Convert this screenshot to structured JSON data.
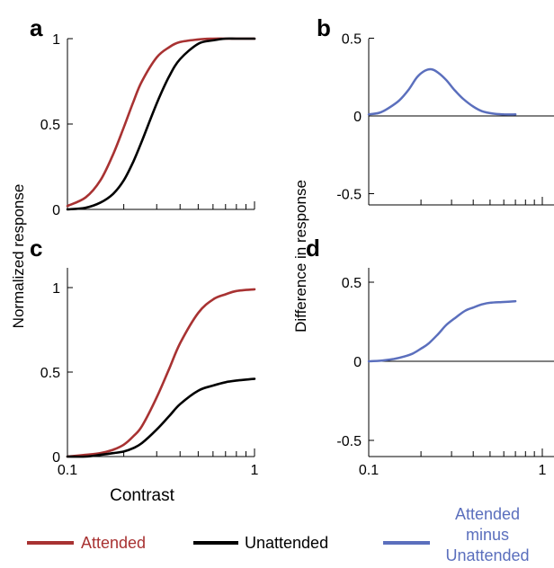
{
  "colors": {
    "attended": "#a83232",
    "unattended": "#000000",
    "difference": "#5b6fbd"
  },
  "labels": {
    "ylabel_left": "Normalized response",
    "ylabel_right": "Difference in response",
    "xlabel": "Contrast"
  },
  "legend": {
    "attended": "Attended",
    "unattended": "Unattended",
    "difference": [
      "Attended",
      "minus",
      "Unattended"
    ]
  },
  "chart_data": [
    {
      "panel": "a",
      "type": "line",
      "xscale": "log",
      "xlim": [
        0.1,
        1
      ],
      "ylim": [
        0,
        1
      ],
      "yticks": [
        "0",
        "0.5",
        "1"
      ],
      "x": [
        0.1,
        0.125,
        0.15,
        0.175,
        0.2,
        0.225,
        0.25,
        0.3,
        0.35,
        0.4,
        0.5,
        0.6,
        0.7,
        0.8,
        1.0
      ],
      "series": [
        {
          "name": "Attended",
          "values": [
            0.02,
            0.07,
            0.17,
            0.32,
            0.48,
            0.63,
            0.75,
            0.89,
            0.95,
            0.98,
            0.995,
            1.0,
            1.0,
            1.0,
            1.0
          ]
        },
        {
          "name": "Unattended",
          "values": [
            0.0,
            0.01,
            0.04,
            0.09,
            0.17,
            0.28,
            0.4,
            0.62,
            0.78,
            0.88,
            0.97,
            0.99,
            1.0,
            1.0,
            1.0
          ]
        }
      ]
    },
    {
      "panel": "b",
      "type": "line",
      "xscale": "log",
      "xlim": [
        0.1,
        1
      ],
      "ylim": [
        -0.55,
        0.55
      ],
      "yticks": [
        "0.5",
        "0",
        "-0.5"
      ],
      "x": [
        0.1,
        0.115,
        0.13,
        0.15,
        0.17,
        0.19,
        0.21,
        0.23,
        0.25,
        0.28,
        0.31,
        0.35,
        0.4,
        0.45,
        0.52,
        0.6,
        0.7
      ],
      "series": [
        {
          "name": "Attended minus Unattended",
          "values": [
            0.01,
            0.02,
            0.05,
            0.1,
            0.17,
            0.25,
            0.29,
            0.3,
            0.28,
            0.23,
            0.17,
            0.11,
            0.06,
            0.03,
            0.015,
            0.01,
            0.01
          ]
        }
      ]
    },
    {
      "panel": "c",
      "type": "line",
      "xscale": "log",
      "xlim": [
        0.1,
        1
      ],
      "ylim": [
        0,
        1.1
      ],
      "yticks": [
        "0",
        "0.5",
        "1"
      ],
      "xticks": [
        "0.1",
        "1"
      ],
      "x": [
        0.1,
        0.125,
        0.15,
        0.175,
        0.2,
        0.225,
        0.25,
        0.3,
        0.35,
        0.4,
        0.5,
        0.6,
        0.7,
        0.8,
        1.0
      ],
      "series": [
        {
          "name": "Attended",
          "values": [
            0.0,
            0.01,
            0.02,
            0.04,
            0.07,
            0.12,
            0.18,
            0.35,
            0.52,
            0.67,
            0.85,
            0.93,
            0.96,
            0.98,
            0.99
          ]
        },
        {
          "name": "Unattended",
          "values": [
            0.0,
            0.0,
            0.01,
            0.02,
            0.03,
            0.05,
            0.08,
            0.16,
            0.24,
            0.31,
            0.39,
            0.42,
            0.44,
            0.45,
            0.46
          ]
        }
      ]
    },
    {
      "panel": "d",
      "type": "line",
      "xscale": "log",
      "xlim": [
        0.1,
        1
      ],
      "ylim": [
        -0.55,
        0.55
      ],
      "yticks": [
        "0.5",
        "0",
        "-0.5"
      ],
      "xticks": [
        "0.1",
        "1"
      ],
      "x": [
        0.1,
        0.12,
        0.14,
        0.16,
        0.18,
        0.2,
        0.22,
        0.25,
        0.28,
        0.32,
        0.36,
        0.4,
        0.45,
        0.5,
        0.6,
        0.7
      ],
      "series": [
        {
          "name": "Attended minus Unattended",
          "values": [
            0.0,
            0.005,
            0.015,
            0.03,
            0.05,
            0.08,
            0.11,
            0.17,
            0.23,
            0.28,
            0.32,
            0.34,
            0.36,
            0.37,
            0.375,
            0.38
          ]
        }
      ]
    }
  ]
}
